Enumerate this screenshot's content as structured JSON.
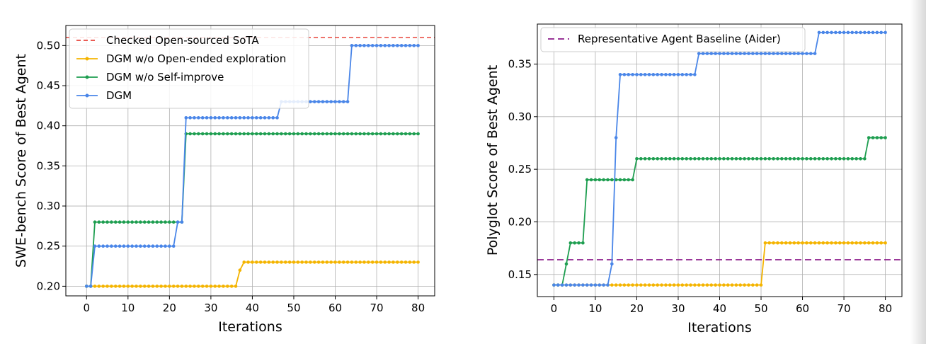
{
  "chart_data": [
    {
      "type": "line",
      "xlabel": "Iterations",
      "ylabel": "SWE-bench Score of Best Agent",
      "xlim": [
        -5,
        84
      ],
      "ylim": [
        0.188,
        0.525
      ],
      "xticks": [
        0,
        10,
        20,
        30,
        40,
        50,
        60,
        70,
        80
      ],
      "yticks": [
        0.2,
        0.25,
        0.3,
        0.35,
        0.4,
        0.45,
        0.5
      ],
      "ytick_format": 2,
      "grid": true,
      "legend_position": "top-left",
      "reference_lines": [
        {
          "name": "Checked Open-sourced SoTA",
          "y": 0.51,
          "color": "#e8453c",
          "dash": "6,4"
        }
      ],
      "series": [
        {
          "name": "DGM w/o Open-ended exploration",
          "color": "#f4b400",
          "steps": [
            [
              0,
              0.2
            ],
            [
              37,
              0.22
            ],
            [
              38,
              0.23
            ]
          ]
        },
        {
          "name": "DGM w/o Self-improve",
          "color": "#1e9e50",
          "steps": [
            [
              0,
              0.2
            ],
            [
              2,
              0.28
            ],
            [
              24,
              0.39
            ]
          ]
        },
        {
          "name": "DGM",
          "color": "#4a86e8",
          "steps": [
            [
              0,
              0.2
            ],
            [
              2,
              0.25
            ],
            [
              22,
              0.28
            ],
            [
              24,
              0.41
            ],
            [
              47,
              0.43
            ],
            [
              64,
              0.5
            ]
          ]
        }
      ],
      "legend_order": [
        "Checked Open-sourced SoTA",
        "DGM w/o Open-ended exploration",
        "DGM w/o Self-improve",
        "DGM"
      ]
    },
    {
      "type": "line",
      "xlabel": "Iterations",
      "ylabel": "Polyglot Score of Best Agent",
      "xlim": [
        -4,
        84
      ],
      "ylim": [
        0.129,
        0.388
      ],
      "xticks": [
        0,
        10,
        20,
        30,
        40,
        50,
        60,
        70,
        80
      ],
      "yticks": [
        0.15,
        0.2,
        0.25,
        0.3,
        0.35
      ],
      "ytick_format": 2,
      "grid": true,
      "legend_position": "top-left",
      "reference_lines": [
        {
          "name": "Representative Agent Baseline (Aider)",
          "y": 0.164,
          "color": "#8b1a89",
          "dash": "9,5"
        }
      ],
      "series": [
        {
          "name": "",
          "color": "#f4b400",
          "steps": [
            [
              0,
              0.14
            ],
            [
              51,
              0.18
            ]
          ]
        },
        {
          "name": "",
          "color": "#1e9e50",
          "steps": [
            [
              0,
              0.14
            ],
            [
              3,
              0.16
            ],
            [
              4,
              0.18
            ],
            [
              8,
              0.24
            ],
            [
              20,
              0.26
            ],
            [
              76,
              0.28
            ]
          ]
        },
        {
          "name": "",
          "color": "#4a86e8",
          "steps": [
            [
              0,
              0.14
            ],
            [
              14,
              0.16
            ],
            [
              15,
              0.28
            ],
            [
              16,
              0.34
            ],
            [
              35,
              0.36
            ],
            [
              64,
              0.38
            ]
          ]
        }
      ],
      "legend_order": [
        "Representative Agent Baseline (Aider)"
      ]
    }
  ]
}
